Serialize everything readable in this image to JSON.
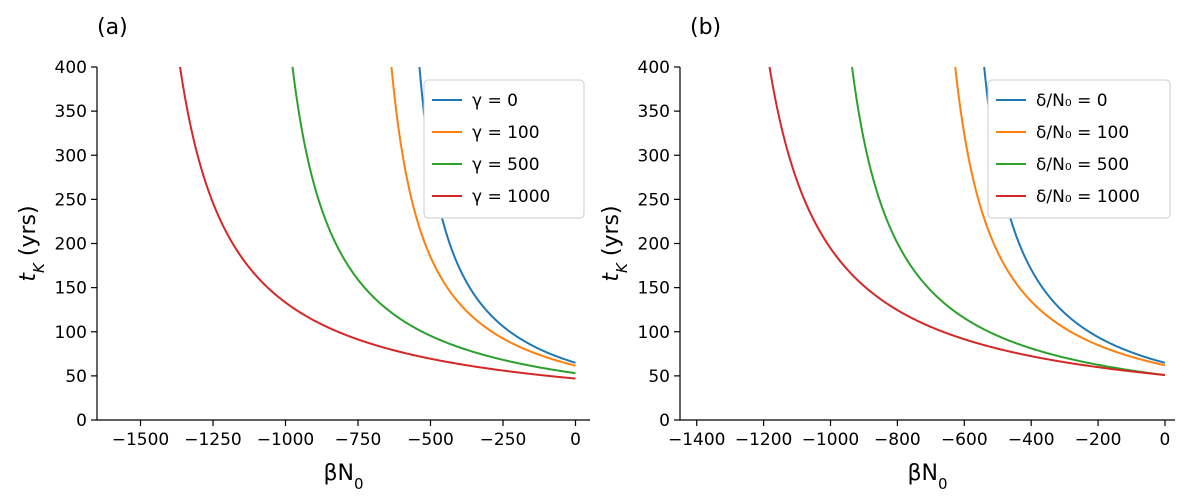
{
  "chart_data": [
    {
      "type": "line",
      "panel_label": "(a)",
      "xlabel": "βN₀",
      "ylabel": "t_K (yrs)",
      "xlim": [
        -1650,
        50
      ],
      "ylim": [
        0,
        400
      ],
      "x_ticks": [
        -1500,
        -1250,
        -1000,
        -750,
        -500,
        -250,
        0
      ],
      "x_tick_labels": [
        "−1500",
        "−1250",
        "−1000",
        "−750",
        "−500",
        "−250",
        "0"
      ],
      "y_ticks": [
        0,
        50,
        100,
        150,
        200,
        250,
        300,
        350,
        400
      ],
      "y_tick_labels": [
        "0",
        "50",
        "100",
        "150",
        "200",
        "250",
        "300",
        "350",
        "400"
      ],
      "legend_position": "top-right",
      "series": [
        {
          "name": "γ = 0",
          "color": "#1f77b4",
          "pole": -642,
          "k": 41600,
          "c": 0,
          "x_end": 0
        },
        {
          "name": "γ = 100",
          "color": "#ff7f0e",
          "pole": -750,
          "k": 46200,
          "c": 0,
          "x_end": 0
        },
        {
          "name": "γ = 500",
          "color": "#2ca02c",
          "pole": -1125,
          "k": 59660,
          "c": 0,
          "x_end": 0
        },
        {
          "name": "γ = 1000",
          "color": "#d62728",
          "pole": -1545,
          "k": 72560,
          "c": 0,
          "x_end": 0
        }
      ]
    },
    {
      "type": "line",
      "panel_label": "(b)",
      "xlabel": "βN₀",
      "ylabel": "t_K (yrs)",
      "xlim": [
        -1450,
        30
      ],
      "ylim": [
        0,
        400
      ],
      "x_ticks": [
        -1400,
        -1200,
        -1000,
        -800,
        -600,
        -400,
        -200,
        0
      ],
      "x_tick_labels": [
        "−1400",
        "−1200",
        "−1000",
        "−800",
        "−600",
        "−400",
        "−200",
        "0"
      ],
      "y_ticks": [
        0,
        50,
        100,
        150,
        200,
        250,
        300,
        350,
        400
      ],
      "y_tick_labels": [
        "0",
        "50",
        "100",
        "150",
        "200",
        "250",
        "300",
        "350",
        "400"
      ],
      "legend_position": "top-right",
      "series": [
        {
          "name": "δ/N₀ = 0",
          "color": "#1f77b4",
          "pole": -645,
          "k": 41800,
          "c": 0,
          "x_end": 0
        },
        {
          "name": "δ/N₀ = 100",
          "color": "#ff7f0e",
          "pole": -742,
          "k": 46000,
          "c": 0,
          "x_end": 0
        },
        {
          "name": "δ/N₀ = 500",
          "color": "#2ca02c",
          "pole": -1072,
          "k": 54540,
          "c": 0,
          "x_end": 0
        },
        {
          "name": "δ/N₀ = 1000",
          "color": "#d62728",
          "pole": -1355,
          "k": 69100,
          "c": 0,
          "x_end": 0
        }
      ]
    }
  ]
}
